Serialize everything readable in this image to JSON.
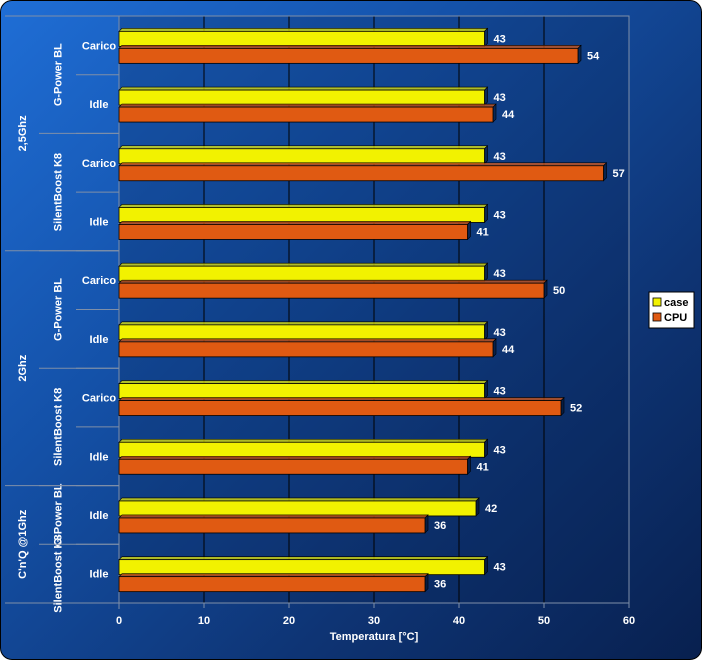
{
  "chart_data": {
    "type": "bar",
    "orientation": "horizontal",
    "xlabel": "Temperatura [°C]",
    "xlim": [
      0,
      60
    ],
    "xticks": [
      0,
      10,
      20,
      30,
      40,
      50,
      60
    ],
    "grid": "vertical",
    "legend_position": "right",
    "series": [
      {
        "name": "case",
        "color": "#f2f200"
      },
      {
        "name": "CPU",
        "color": "#e05a12"
      }
    ],
    "groups": [
      {
        "label": "2,5Ghz",
        "subgroups": [
          {
            "label": "G-Power BL",
            "rows": [
              {
                "label": "Carico",
                "case": 43,
                "cpu": 54
              },
              {
                "label": "Idle",
                "case": 43,
                "cpu": 44
              }
            ]
          },
          {
            "label": "SilentBoost K8",
            "rows": [
              {
                "label": "Carico",
                "case": 43,
                "cpu": 57
              },
              {
                "label": "Idle",
                "case": 43,
                "cpu": 41
              }
            ]
          }
        ]
      },
      {
        "label": "2Ghz",
        "subgroups": [
          {
            "label": "G-Power BL",
            "rows": [
              {
                "label": "Carico",
                "case": 43,
                "cpu": 50
              },
              {
                "label": "Idle",
                "case": 43,
                "cpu": 44
              }
            ]
          },
          {
            "label": "SilentBoost K8",
            "rows": [
              {
                "label": "Carico",
                "case": 43,
                "cpu": 52
              },
              {
                "label": "Idle",
                "case": 43,
                "cpu": 41
              }
            ]
          }
        ]
      },
      {
        "label": "C'n'Q @1Ghz",
        "subgroups": [
          {
            "label": "G-Power BL",
            "rows": [
              {
                "label": "Idle",
                "case": 42,
                "cpu": 36
              }
            ]
          },
          {
            "label": "SilentBoost K8",
            "rows": [
              {
                "label": "Idle",
                "case": 43,
                "cpu": 36
              }
            ]
          }
        ]
      }
    ]
  }
}
